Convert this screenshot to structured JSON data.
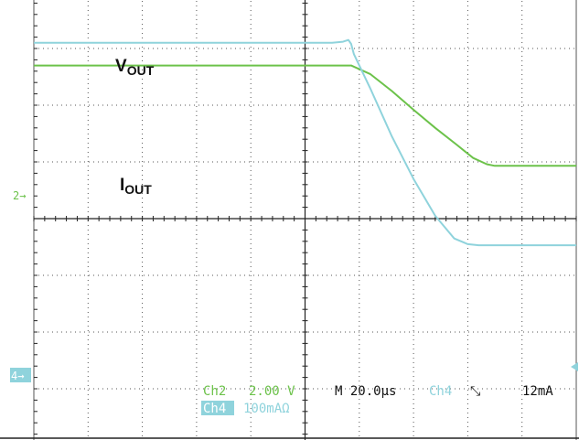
{
  "chart_data": {
    "type": "line",
    "title": "",
    "xlabel": "",
    "ylabel": "",
    "grid": true,
    "timebase_per_div": "20.0µs",
    "x_divisions": 10,
    "y_divisions": 8,
    "series": [
      {
        "name": "VOUT",
        "label_main": "V",
        "label_sub": "OUT",
        "channel": "Ch2",
        "scale": "2.00 V",
        "marker": "2→",
        "color": "#6cc24a",
        "units": "divisions",
        "x": [
          0,
          5.85,
          6.2,
          6.6,
          7.0,
          7.4,
          7.8,
          8.1,
          8.35,
          8.5,
          10
        ],
        "y": [
          2.7,
          2.7,
          2.55,
          2.25,
          1.92,
          1.6,
          1.3,
          1.07,
          0.96,
          0.93,
          0.93
        ]
      },
      {
        "name": "IOUT",
        "label_main": "I",
        "label_sub": "OUT",
        "channel": "Ch4",
        "scale": "100mAΩ",
        "marker": "4→",
        "color": "#8fd3dc",
        "units": "divisions",
        "x": [
          0,
          5.5,
          5.7,
          5.8,
          5.85,
          5.9,
          6.2,
          6.6,
          7.0,
          7.4,
          7.75,
          8.0,
          8.2,
          10
        ],
        "y": [
          3.1,
          3.1,
          3.12,
          3.15,
          3.08,
          2.9,
          2.3,
          1.45,
          0.7,
          0.05,
          -0.35,
          -0.45,
          -0.47,
          -0.47
        ]
      }
    ],
    "trigger": {
      "source": "Ch4",
      "slope_symbol": "⤡",
      "level": "12mA"
    },
    "readouts": {
      "ch2": "Ch2",
      "ch2_scale": "2.00 V",
      "ch4": "Ch4",
      "ch4_scale": "100mAΩ",
      "timebase": "M 20.0µs",
      "trig_src": "Ch4",
      "trig_slope": "⤡",
      "trig_level": "12mA"
    }
  }
}
